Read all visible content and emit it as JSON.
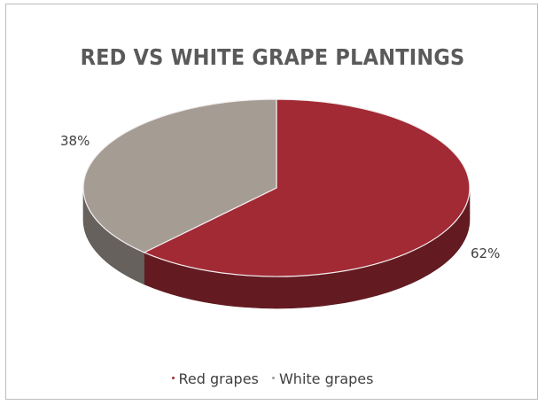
{
  "chart_data": {
    "type": "pie",
    "title": "RED VS WHITE GRAPE PLANTINGS",
    "categories": [
      "Red grapes",
      "White grapes"
    ],
    "values": [
      62,
      38
    ],
    "data_labels": [
      "62%",
      "38%"
    ],
    "colors": [
      "#a12a35",
      "#a59c94"
    ],
    "legend_position": "bottom",
    "style": "3d"
  }
}
